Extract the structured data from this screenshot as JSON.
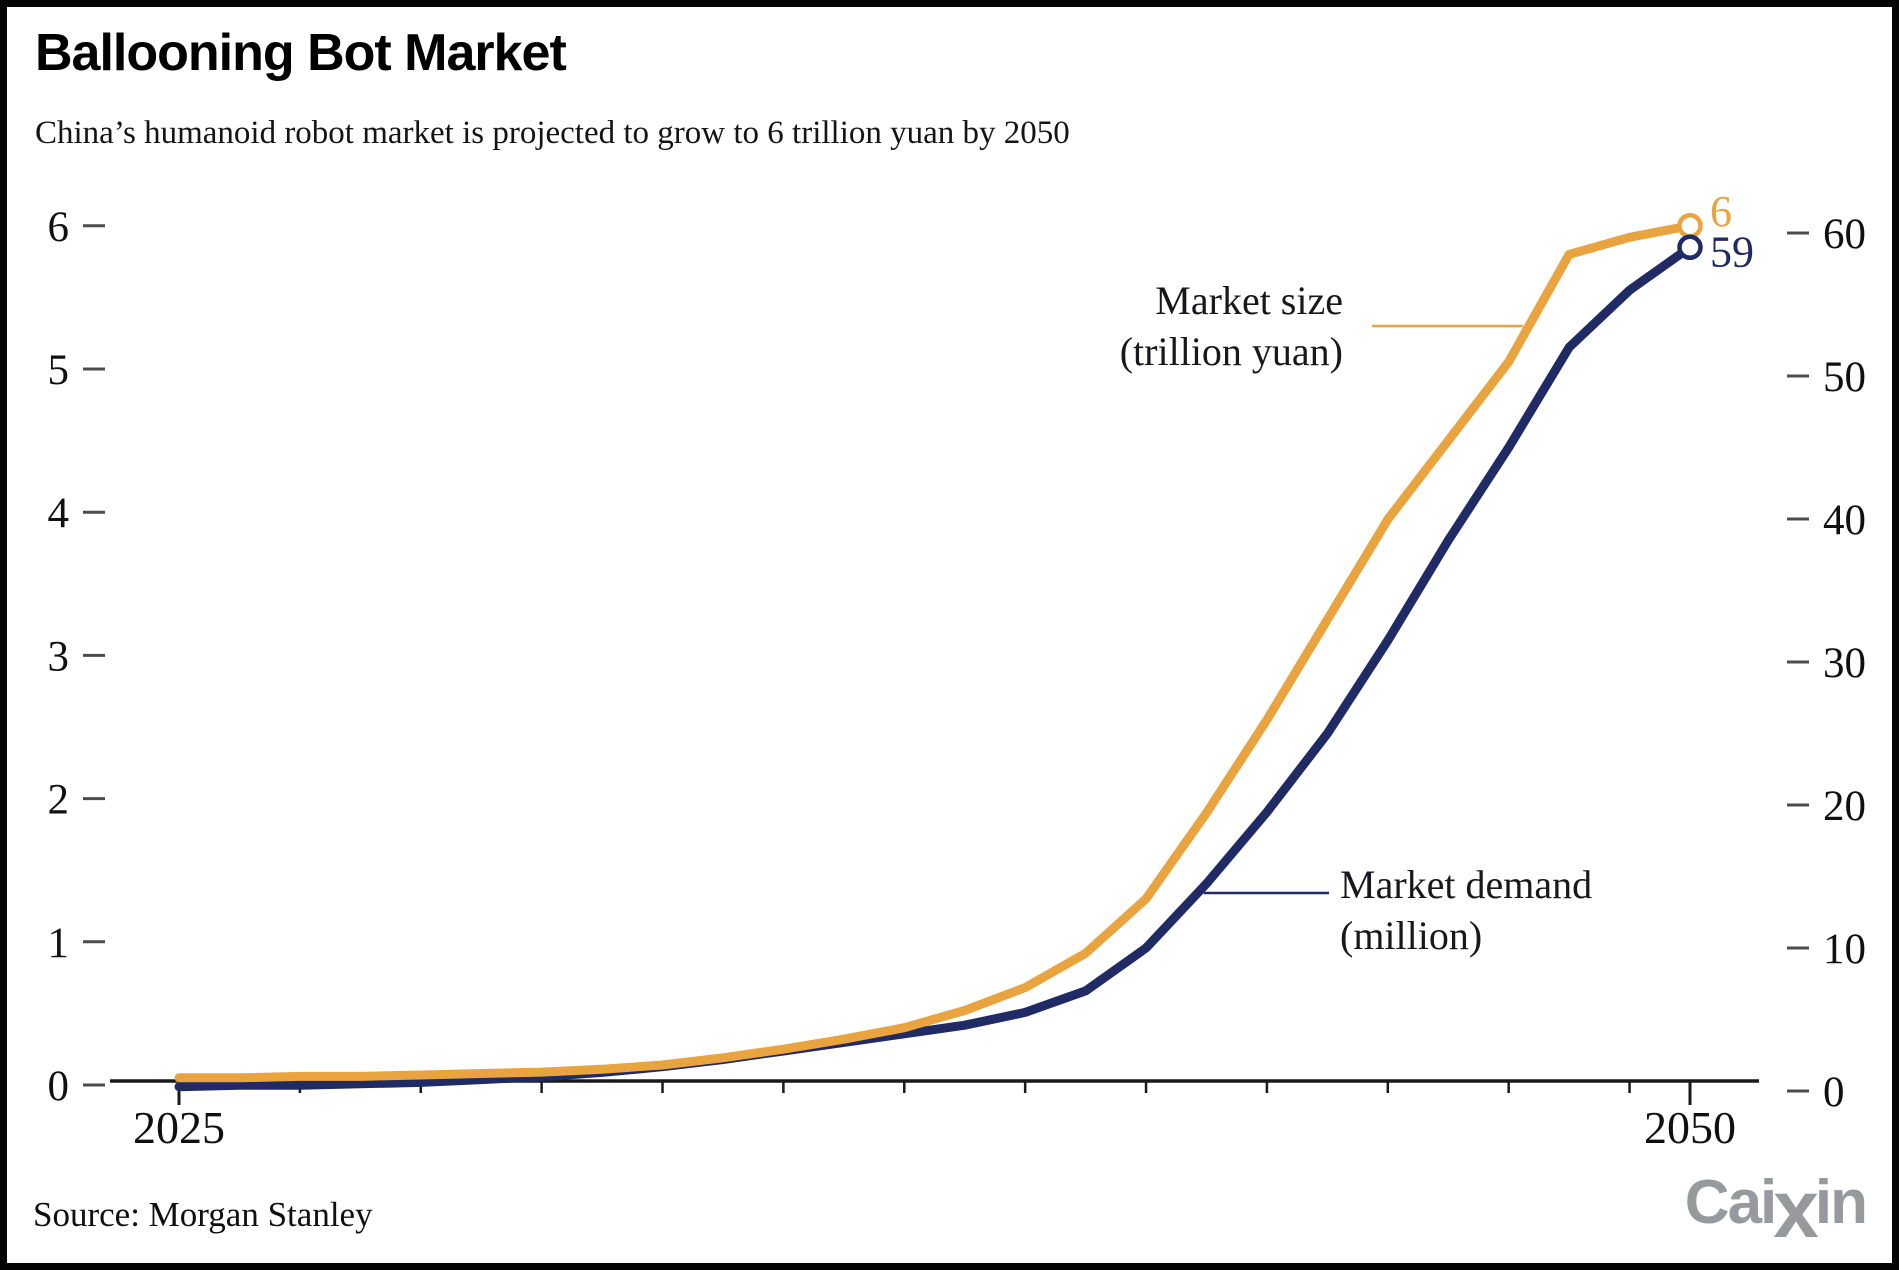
{
  "header": {
    "title": "Ballooning Bot Market",
    "subtitle": "China’s humanoid robot market is projected to grow to 6 trillion yuan by 2050"
  },
  "footer": {
    "source": "Source: Morgan Stanley"
  },
  "brand": {
    "pre": "Cai",
    "x": "x",
    "post": "in",
    "full": "Caixin"
  },
  "chart_data": {
    "type": "line",
    "title": "Ballooning Bot Market",
    "subtitle": "China’s humanoid robot market is projected to grow to 6 trillion yuan by 2050",
    "source": "Source: Morgan Stanley",
    "grid": false,
    "background": "#ffffff",
    "x": {
      "start_year": 2025,
      "end_year": 2050,
      "labeled_ticks": [
        2025,
        2050
      ],
      "labeled_tick_labels": [
        "2025",
        "2050"
      ],
      "minor_tick_years": [
        2027,
        2029,
        2031,
        2033,
        2035,
        2037,
        2039,
        2041,
        2043,
        2045,
        2047,
        2049
      ]
    },
    "axes": {
      "left": {
        "min": 0,
        "max": 6,
        "tick_step": 1,
        "ticks": [
          0,
          1,
          2,
          3,
          4,
          5,
          6
        ]
      },
      "right": {
        "min": 0,
        "max": 60,
        "tick_step": 10,
        "ticks": [
          0,
          10,
          20,
          30,
          40,
          50,
          60
        ]
      }
    },
    "series": [
      {
        "name": "Market size (trillion yuan)",
        "label_lines": [
          "Market size",
          "(trillion yuan)"
        ],
        "axis": "left",
        "color": "#E9A440",
        "end_label": "6",
        "end_marker": "open-circle",
        "years": [
          2025,
          2026,
          2027,
          2028,
          2029,
          2030,
          2031,
          2032,
          2033,
          2034,
          2035,
          2036,
          2037,
          2038,
          2039,
          2040,
          2041,
          2042,
          2043,
          2044,
          2045,
          2046,
          2047,
          2048,
          2049,
          2050
        ],
        "values": [
          0.05,
          0.05,
          0.06,
          0.06,
          0.07,
          0.08,
          0.09,
          0.11,
          0.14,
          0.19,
          0.25,
          0.32,
          0.4,
          0.52,
          0.68,
          0.92,
          1.3,
          1.9,
          2.55,
          3.25,
          3.95,
          4.5,
          5.05,
          5.8,
          5.92,
          6.0
        ]
      },
      {
        "name": "Market demand (million)",
        "label_lines": [
          "Market demand",
          "(million)"
        ],
        "axis": "right",
        "color": "#202A64",
        "end_label": "59",
        "end_marker": "open-circle",
        "years": [
          2025,
          2026,
          2027,
          2028,
          2029,
          2030,
          2031,
          2032,
          2033,
          2034,
          2035,
          2036,
          2037,
          2038,
          2039,
          2040,
          2041,
          2042,
          2043,
          2044,
          2045,
          2046,
          2047,
          2048,
          2049,
          2050
        ],
        "values": [
          0.3,
          0.4,
          0.4,
          0.5,
          0.6,
          0.8,
          1.0,
          1.3,
          1.7,
          2.2,
          2.8,
          3.4,
          4.0,
          4.6,
          5.5,
          7.0,
          10.0,
          14.5,
          19.5,
          25.0,
          31.5,
          38.5,
          45.0,
          52.0,
          56.0,
          59.0
        ]
      }
    ],
    "annotations": [
      {
        "series_index": 0,
        "attach_value": 5.3,
        "label_lines": [
          "Market size",
          "(trillion yuan)"
        ],
        "position": "left-of-curve"
      },
      {
        "series_index": 1,
        "attach_value": 13.85,
        "label_lines": [
          "Market demand",
          "(million)"
        ],
        "position": "right-of-curve"
      }
    ]
  }
}
